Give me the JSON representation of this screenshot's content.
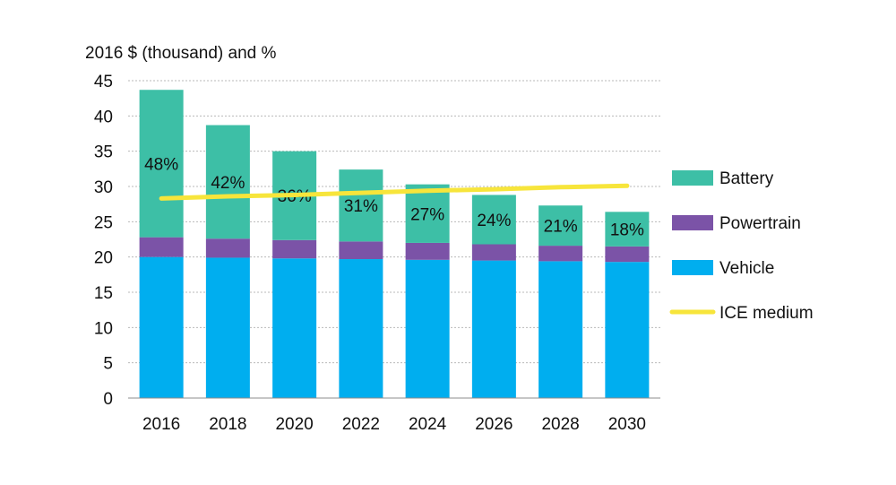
{
  "chart_data": {
    "type": "bar",
    "stacked": true,
    "title": "2016 $ (thousand) and %",
    "categories": [
      "2016",
      "2018",
      "2020",
      "2022",
      "2024",
      "2026",
      "2028",
      "2030"
    ],
    "series": [
      {
        "name": "Vehicle",
        "color": "#00AEEF",
        "values": [
          20.0,
          19.9,
          19.8,
          19.7,
          19.6,
          19.5,
          19.4,
          19.3
        ]
      },
      {
        "name": "Powertrain",
        "color": "#7B53A7",
        "values": [
          2.8,
          2.7,
          2.6,
          2.5,
          2.4,
          2.3,
          2.2,
          2.2
        ]
      },
      {
        "name": "Battery",
        "color": "#3DBFA6",
        "values": [
          20.9,
          16.1,
          12.6,
          10.2,
          8.3,
          7.0,
          5.7,
          4.9
        ],
        "labels": [
          "48%",
          "42%",
          "36%",
          "31%",
          "27%",
          "24%",
          "21%",
          "18%"
        ]
      },
      {
        "name": "ICE medium",
        "type": "line",
        "color": "#F7E53B",
        "values": [
          28.3,
          28.6,
          28.8,
          29.1,
          29.4,
          29.6,
          29.9,
          30.1
        ]
      }
    ],
    "yticks": [
      "0",
      "5",
      "10",
      "15",
      "20",
      "25",
      "30",
      "35",
      "40",
      "45"
    ],
    "ylim": [
      0,
      45
    ],
    "grid": true,
    "legend_position": "right"
  }
}
